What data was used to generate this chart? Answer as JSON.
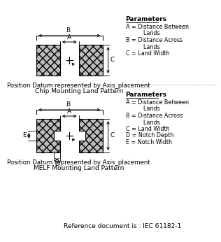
{
  "title1_line1": "Position Datum represented by Axis_placement",
  "title1_line2": "Chip Mounting Land Pattern",
  "title2_line1": "Position Datum represented by Axis_placement",
  "title2_line2": "MELF Mounting Land Pattern",
  "ref_doc": "Reference document is : IEC 61182-1",
  "params_title": "Parameters",
  "chip_params": [
    "A = Distance Between",
    "          Lands",
    "B = Distance Across",
    "          Lands",
    "C = Land Width"
  ],
  "melf_params": [
    "A = Distance Between",
    "          Lands",
    "B = Distance Across",
    "          Lands",
    "C = Land Width",
    "D = Notch Depth",
    "E = Notch Width"
  ],
  "pad_color": "#bbbbbb",
  "hatch": "xxx"
}
